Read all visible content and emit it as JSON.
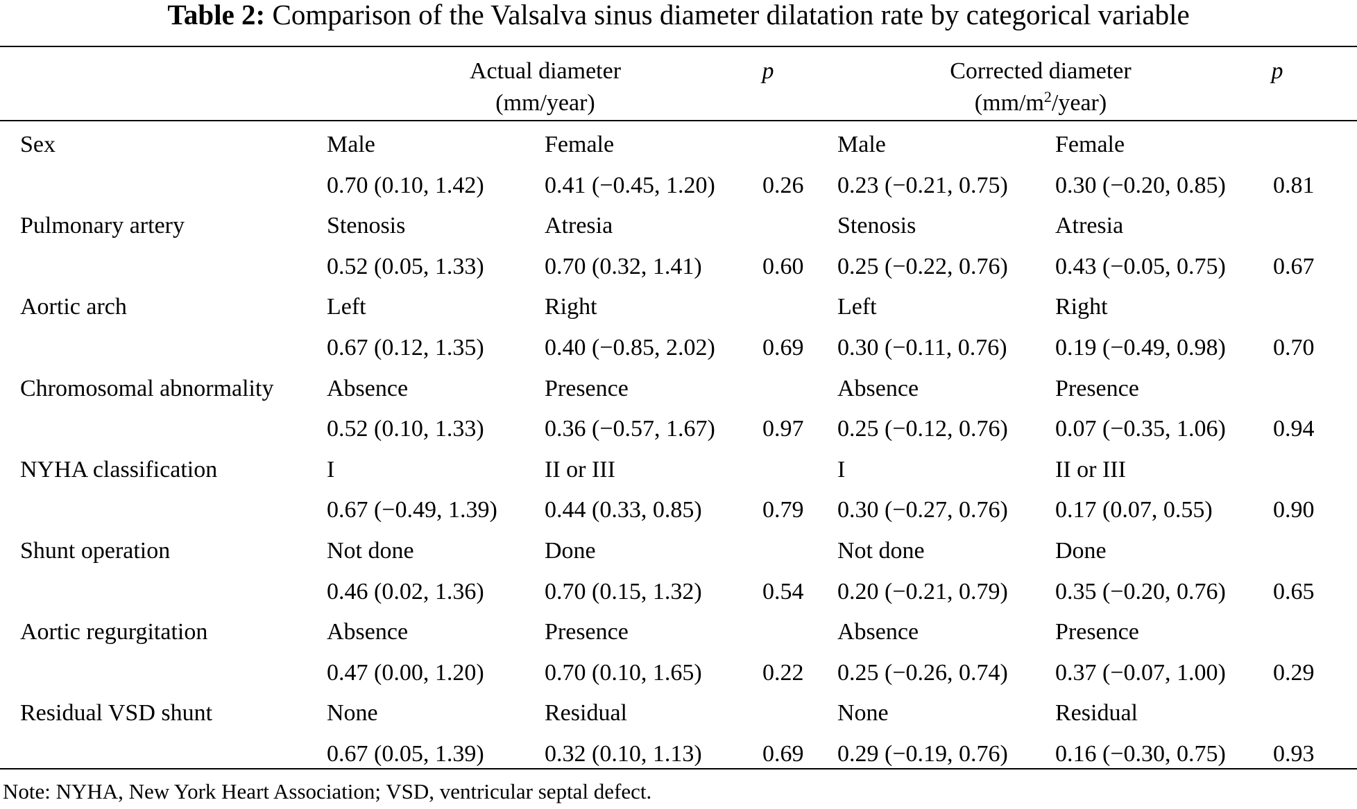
{
  "caption": {
    "label": "Table 2:",
    "title": "Comparison of the Valsalva sinus diameter dilatation rate by categorical variable"
  },
  "header": {
    "actual_line1": "Actual diameter",
    "actual_line2": "(mm/year)",
    "p_label": "p",
    "corrected_line1": "Corrected diameter",
    "corrected_line2_pre": "(mm/m",
    "corrected_line2_sup": "2",
    "corrected_line2_post": "/year)"
  },
  "rows": [
    {
      "variable": "Sex",
      "group1": "Male",
      "group2": "Female",
      "actual_g1": "0.70 (0.10, 1.42)",
      "actual_g2": "0.41 (−0.45, 1.20)",
      "actual_p": "0.26",
      "corrected_g1": "0.23 (−0.21, 0.75)",
      "corrected_g2": "0.30 (−0.20, 0.85)",
      "corrected_p": "0.81"
    },
    {
      "variable": "Pulmonary artery",
      "group1": "Stenosis",
      "group2": "Atresia",
      "actual_g1": "0.52 (0.05, 1.33)",
      "actual_g2": "0.70 (0.32, 1.41)",
      "actual_p": "0.60",
      "corrected_g1": "0.25 (−0.22, 0.76)",
      "corrected_g2": "0.43 (−0.05, 0.75)",
      "corrected_p": "0.67"
    },
    {
      "variable": "Aortic arch",
      "group1": "Left",
      "group2": "Right",
      "actual_g1": "0.67 (0.12, 1.35)",
      "actual_g2": "0.40 (−0.85, 2.02)",
      "actual_p": "0.69",
      "corrected_g1": "0.30 (−0.11, 0.76)",
      "corrected_g2": "0.19 (−0.49, 0.98)",
      "corrected_p": "0.70"
    },
    {
      "variable": "Chromosomal abnormality",
      "group1": "Absence",
      "group2": "Presence",
      "actual_g1": "0.52 (0.10, 1.33)",
      "actual_g2": "0.36 (−0.57, 1.67)",
      "actual_p": "0.97",
      "corrected_g1": "0.25 (−0.12, 0.76)",
      "corrected_g2": "0.07 (−0.35, 1.06)",
      "corrected_p": "0.94"
    },
    {
      "variable": "NYHA classification",
      "group1": "I",
      "group2": "II or III",
      "actual_g1": "0.67 (−0.49, 1.39)",
      "actual_g2": "0.44 (0.33, 0.85)",
      "actual_p": "0.79",
      "corrected_g1": "0.30 (−0.27, 0.76)",
      "corrected_g2": "0.17 (0.07, 0.55)",
      "corrected_p": "0.90"
    },
    {
      "variable": "Shunt operation",
      "group1": "Not done",
      "group2": "Done",
      "actual_g1": "0.46 (0.02, 1.36)",
      "actual_g2": "0.70 (0.15, 1.32)",
      "actual_p": "0.54",
      "corrected_g1": "0.20 (−0.21, 0.79)",
      "corrected_g2": "0.35 (−0.20, 0.76)",
      "corrected_p": "0.65"
    },
    {
      "variable": "Aortic regurgitation",
      "group1": "Absence",
      "group2": "Presence",
      "actual_g1": "0.47 (0.00, 1.20)",
      "actual_g2": "0.70 (0.10, 1.65)",
      "actual_p": "0.22",
      "corrected_g1": "0.25 (−0.26, 0.74)",
      "corrected_g2": "0.37 (−0.07, 1.00)",
      "corrected_p": "0.29"
    },
    {
      "variable": "Residual VSD shunt",
      "group1": "None",
      "group2": "Residual",
      "actual_g1": "0.67 (0.05, 1.39)",
      "actual_g2": "0.32 (0.10, 1.13)",
      "actual_p": "0.69",
      "corrected_g1": "0.29 (−0.19, 0.76)",
      "corrected_g2": "0.16 (−0.30, 0.75)",
      "corrected_p": "0.93"
    }
  ],
  "note": "Note: NYHA, New York Heart Association; VSD, ventricular septal defect."
}
